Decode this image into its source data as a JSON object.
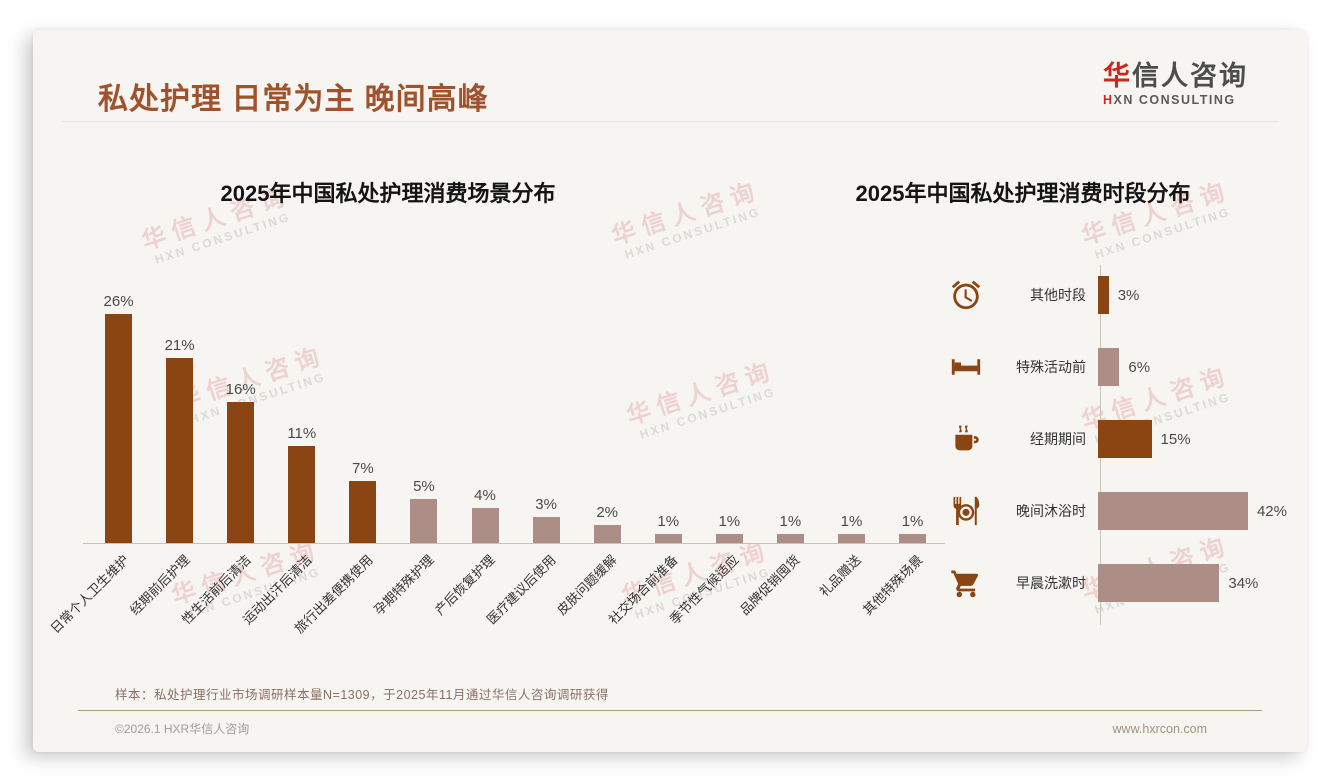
{
  "page": {
    "title": "私处护理 日常为主 晚间高峰",
    "logo": {
      "cn_first": "华",
      "cn_rest": "信人咨询",
      "en_first": "H",
      "en_rest": "XN CONSULTING"
    },
    "watermark": {
      "cn": "华信人咨询",
      "en": "HXN CONSULTING"
    },
    "footer": {
      "sample_note": "样本：私处护理行业市场调研样本量N=1309，于2025年11月通过华信人咨询调研获得",
      "copyright": "©2026.1 HXR华信人咨询",
      "website": "www.hxrcon.com"
    }
  },
  "colors": {
    "accent_dark": "#8B4513",
    "accent_light": "#AC8E86",
    "title": "#A0522D",
    "logo_red": "#C8281E"
  },
  "chart_data": [
    {
      "type": "bar",
      "title": "2025年中国私处护理消费场景分布",
      "categories": [
        "日常个人卫生维护",
        "经期前后护理",
        "性生活前后清洁",
        "运动出汗后清洁",
        "旅行出差便携使用",
        "孕期特殊护理",
        "产后恢复护理",
        "医疗建议后使用",
        "皮肤问题缓解",
        "社交场合前准备",
        "季节性气候适应",
        "品牌促销囤货",
        "礼品赠送",
        "其他特殊场景"
      ],
      "values": [
        26,
        21,
        16,
        11,
        7,
        5,
        4,
        3,
        2,
        1,
        1,
        1,
        1,
        1
      ],
      "value_labels": [
        "26%",
        "21%",
        "16%",
        "11%",
        "7%",
        "5%",
        "4%",
        "3%",
        "2%",
        "1%",
        "1%",
        "1%",
        "1%",
        "1%"
      ],
      "bar_colors": [
        "dark",
        "dark",
        "dark",
        "dark",
        "dark",
        "light",
        "light",
        "light",
        "light",
        "light",
        "light",
        "light",
        "light",
        "light"
      ],
      "xlabel": "",
      "ylabel": "",
      "ylim": [
        0,
        26
      ],
      "grid": false,
      "legend": false
    },
    {
      "type": "bar",
      "orientation": "horizontal",
      "title": "2025年中国私处护理消费时段分布",
      "categories": [
        "其他时段",
        "特殊活动前",
        "经期期间",
        "晚间沐浴时",
        "早晨洗漱时"
      ],
      "values": [
        3,
        6,
        15,
        42,
        34
      ],
      "value_labels": [
        "3%",
        "6%",
        "15%",
        "42%",
        "34%"
      ],
      "bar_colors": [
        "dark",
        "light",
        "dark",
        "light",
        "light"
      ],
      "icons": [
        "alarm-clock",
        "bed",
        "coffee",
        "dining",
        "cart"
      ],
      "xlabel": "",
      "ylabel": "",
      "xlim": [
        0,
        42
      ],
      "grid": false,
      "legend": false
    }
  ]
}
